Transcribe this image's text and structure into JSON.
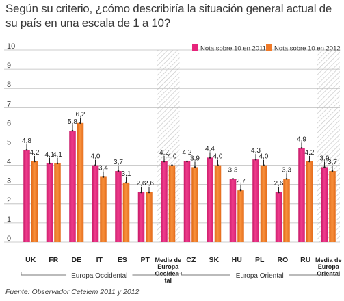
{
  "page": {
    "title": "Según su criterio, ¿cómo describiría la situación general actual de su país en una escala de 1 a 10?",
    "source": "Fuente: Observador Cetelem 2011 y 2012"
  },
  "chart_data": {
    "type": "bar",
    "categories": [
      "UK",
      "FR",
      "DE",
      "IT",
      "ES",
      "PT",
      "Media de Europa Occidental",
      "CZ",
      "SK",
      "HU",
      "PL",
      "RO",
      "RU",
      "Media de Europa Oriental"
    ],
    "category_lines": [
      [
        "UK"
      ],
      [
        "FR"
      ],
      [
        "DE"
      ],
      [
        "IT"
      ],
      [
        "ES"
      ],
      [
        "PT"
      ],
      [
        "Media de",
        "Europa",
        "Occiden-",
        "tal"
      ],
      [
        "CZ"
      ],
      [
        "SK"
      ],
      [
        "HU"
      ],
      [
        "PL"
      ],
      [
        "RO"
      ],
      [
        "RU"
      ],
      [
        "Media de",
        "Europa",
        "Oriental"
      ]
    ],
    "series": [
      {
        "name": "Nota sobre 10 en 2011",
        "color": "#e6247b",
        "values": [
          4.8,
          4.1,
          5.8,
          4.0,
          3.7,
          2.6,
          4.2,
          4.2,
          4.4,
          3.3,
          4.3,
          2.6,
          4.9,
          3.9
        ],
        "labels": [
          "4,8",
          "4,1",
          "5,8",
          "4,0",
          "3,7",
          "2,6",
          "4,2",
          "4,2",
          "4,4",
          "3,3",
          "4,3",
          "2,6",
          "4,9",
          "3,9"
        ]
      },
      {
        "name": "Nota sobre 10 en 2012",
        "color": "#f07b2a",
        "values": [
          4.2,
          4.1,
          6.2,
          3.4,
          3.1,
          2.6,
          4.0,
          3.9,
          4.0,
          2.7,
          4.0,
          3.3,
          4.2,
          3.7
        ],
        "labels": [
          "4,2",
          "4,1",
          "6,2",
          "3,4",
          "3,1",
          "2,6",
          "4,0",
          "3,9",
          "4,0",
          "2,7",
          "4,0",
          "3,3",
          "4,2",
          "3,7"
        ]
      }
    ],
    "yticks": [
      0,
      1,
      2,
      3,
      4,
      5,
      6,
      7,
      8,
      9,
      10
    ],
    "ylim": [
      0,
      10
    ],
    "groups": [
      {
        "label": "Europa Occidental",
        "from": 0,
        "to": 6
      },
      {
        "label": "Europa Oriental",
        "from": 7,
        "to": 13
      }
    ],
    "legend": "top-right",
    "grid": true,
    "colors": {
      "grid": "#bbbbbb",
      "hatch": "#bdbdbd",
      "text": "#333333"
    }
  }
}
